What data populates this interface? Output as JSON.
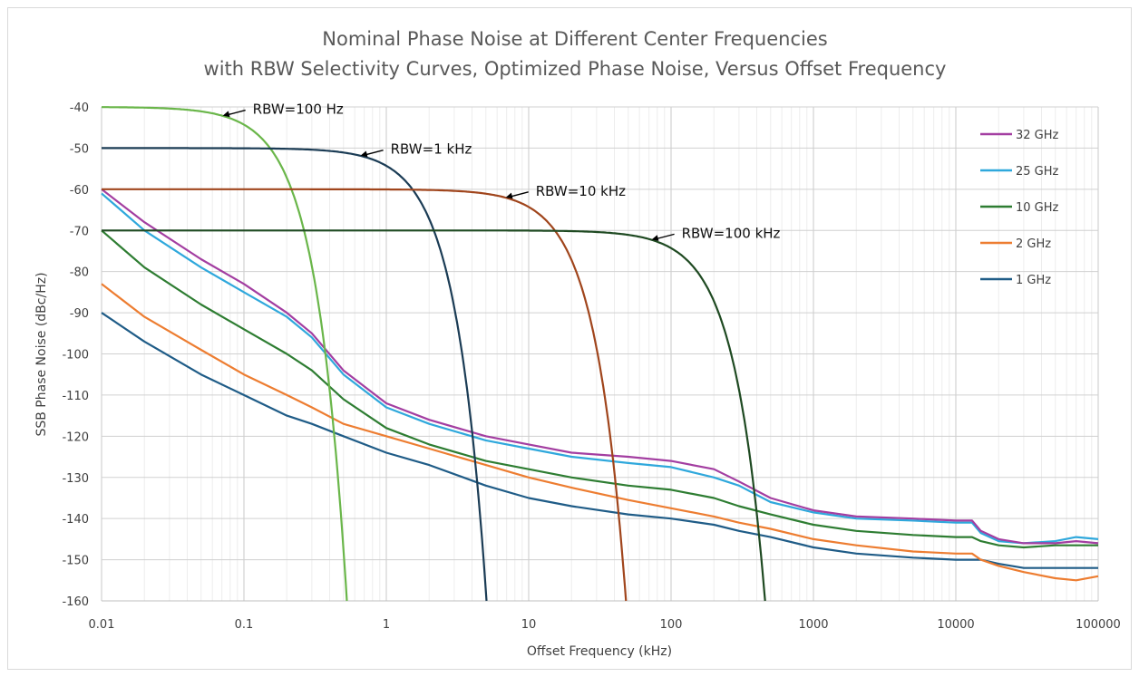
{
  "chart_data": {
    "type": "line",
    "title_lines": [
      "Nominal Phase Noise at Different Center Frequencies",
      "with RBW Selectivity Curves, Optimized Phase Noise, Versus Offset Frequency"
    ],
    "xlabel": "Offset Frequency (kHz)",
    "ylabel": "SSB Phase Noise (dBc/Hz)",
    "x_scale": "log",
    "xlim": [
      0.01,
      100000
    ],
    "ylim": [
      -160,
      -40
    ],
    "x_tick_labels": [
      "0.01",
      "0.1",
      "1",
      "10",
      "100",
      "1000",
      "10000",
      "100000"
    ],
    "y_tick_labels": [
      "-40",
      "-50",
      "-60",
      "-70",
      "-80",
      "-90",
      "-100",
      "-110",
      "-120",
      "-130",
      "-140",
      "-150",
      "-160"
    ],
    "grid": true,
    "legend_position": "top-right",
    "series": [
      {
        "name": "32 GHz",
        "color": "#a33ea1",
        "x": [
          0.01,
          0.02,
          0.05,
          0.1,
          0.2,
          0.3,
          0.5,
          1,
          2,
          5,
          10,
          20,
          50,
          100,
          200,
          300,
          500,
          1000,
          2000,
          5000,
          10000,
          13000,
          15000,
          20000,
          30000,
          50000,
          70000,
          100000
        ],
        "y": [
          -60,
          -68,
          -77,
          -83,
          -90,
          -95,
          -104,
          -112,
          -116,
          -120,
          -122,
          -124,
          -125,
          -126,
          -128,
          -131,
          -135,
          -138,
          -139.5,
          -140,
          -140.5,
          -140.5,
          -143,
          -145,
          -146,
          -146,
          -145.5,
          -146
        ]
      },
      {
        "name": "25 GHz",
        "color": "#2fa8dc",
        "x": [
          0.01,
          0.02,
          0.05,
          0.1,
          0.2,
          0.3,
          0.5,
          1,
          2,
          5,
          10,
          20,
          50,
          100,
          200,
          300,
          500,
          1000,
          2000,
          5000,
          10000,
          13000,
          15000,
          20000,
          30000,
          50000,
          70000,
          100000
        ],
        "y": [
          -61,
          -70,
          -79,
          -85,
          -91,
          -96,
          -105,
          -113,
          -117,
          -121,
          -123,
          -125,
          -126.5,
          -127.5,
          -130,
          -132,
          -136,
          -138.5,
          -140,
          -140.5,
          -141,
          -141,
          -143.5,
          -145.5,
          -146,
          -145.5,
          -144.5,
          -145
        ]
      },
      {
        "name": "10 GHz",
        "color": "#2e7d32",
        "x": [
          0.01,
          0.02,
          0.05,
          0.1,
          0.2,
          0.3,
          0.5,
          1,
          2,
          5,
          10,
          20,
          50,
          100,
          200,
          300,
          500,
          1000,
          2000,
          5000,
          10000,
          13000,
          15000,
          20000,
          30000,
          50000,
          70000,
          100000
        ],
        "y": [
          -70,
          -79,
          -88,
          -94,
          -100,
          -104,
          -111,
          -118,
          -122,
          -126,
          -128,
          -130,
          -132,
          -133,
          -135,
          -137,
          -139,
          -141.5,
          -143,
          -144,
          -144.5,
          -144.5,
          -145.5,
          -146.5,
          -147,
          -146.5,
          -146.5,
          -146.5
        ]
      },
      {
        "name": "2 GHz",
        "color": "#ed7d31",
        "x": [
          0.01,
          0.02,
          0.05,
          0.1,
          0.2,
          0.3,
          0.5,
          1,
          2,
          5,
          10,
          20,
          50,
          100,
          200,
          300,
          500,
          1000,
          2000,
          5000,
          10000,
          13000,
          15000,
          20000,
          30000,
          50000,
          70000,
          100000
        ],
        "y": [
          -83,
          -91,
          -99,
          -105,
          -110,
          -113,
          -117,
          -120,
          -123,
          -127,
          -130,
          -132.5,
          -135.5,
          -137.5,
          -139.5,
          -141,
          -142.5,
          -145,
          -146.5,
          -148,
          -148.5,
          -148.5,
          -150,
          -151.5,
          -153,
          -154.5,
          -155,
          -154
        ]
      },
      {
        "name": "1 GHz",
        "color": "#1f5c87",
        "x": [
          0.01,
          0.02,
          0.05,
          0.1,
          0.2,
          0.3,
          0.5,
          1,
          2,
          5,
          10,
          20,
          50,
          100,
          200,
          300,
          500,
          1000,
          2000,
          5000,
          10000,
          13000,
          15000,
          20000,
          30000,
          50000,
          70000,
          100000
        ],
        "y": [
          -90,
          -97,
          -105,
          -110,
          -115,
          -117,
          -120,
          -124,
          -127,
          -132,
          -135,
          -137,
          -139,
          -140,
          -141.5,
          -143,
          -144.5,
          -147,
          -148.5,
          -149.5,
          -150,
          -150,
          -150,
          -151,
          -152,
          -152,
          -152,
          -152
        ]
      }
    ],
    "rbw_curves": [
      {
        "label": "RBW=100 Hz",
        "color": "#6ab64a",
        "level": -40,
        "cutoff_khz": 0.1
      },
      {
        "label": "RBW=1 kHz",
        "color": "#1b3c55",
        "level": -50,
        "cutoff_khz": 1
      },
      {
        "label": "RBW=10 kHz",
        "color": "#a0451c",
        "level": -60,
        "cutoff_khz": 10
      },
      {
        "label": "RBW=100 kHz",
        "color": "#1f4a22",
        "level": -70,
        "cutoff_khz": 100
      }
    ]
  }
}
